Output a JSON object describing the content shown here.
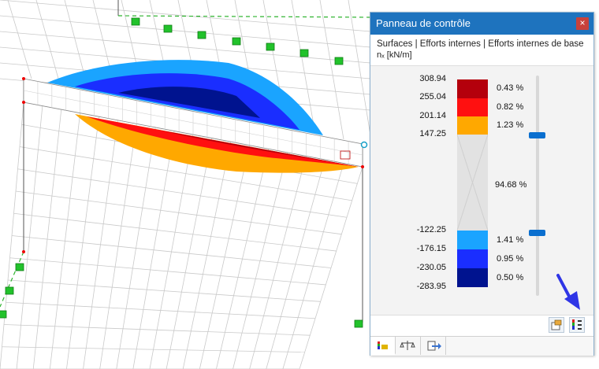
{
  "panel": {
    "title": "Panneau de contrôle",
    "close_label": "×",
    "breadcrumb": "Surfaces | Efforts internes | Efforts internes de base",
    "unit": "nₓ [kN/m]"
  },
  "legend": {
    "values": [
      "308.94",
      "255.04",
      "201.14",
      "147.25",
      "-122.25",
      "-176.15",
      "-230.05",
      "-283.95"
    ],
    "bands": [
      {
        "color": "#b4000c",
        "percent": "0.43 %"
      },
      {
        "color": "#ff1010",
        "percent": "0.82 %"
      },
      {
        "color": "#ffa800",
        "percent": "1.23 %"
      },
      {
        "color": "#e2e2e2",
        "percent": "94.68 %"
      },
      {
        "color": "#1aa4ff",
        "percent": "1.41 %"
      },
      {
        "color": "#1a2eff",
        "percent": "0.95 %"
      },
      {
        "color": "#00138f",
        "percent": "0.50 %"
      }
    ]
  },
  "colors": {
    "accent": "#1e73be",
    "arrow": "#2f35e6",
    "support": "#22c22b"
  },
  "icons": {
    "bottom_tools": [
      "settings-icon",
      "color-scale-icon"
    ],
    "tabs": [
      "color-legend-icon",
      "balance-icon",
      "export-icon"
    ]
  }
}
